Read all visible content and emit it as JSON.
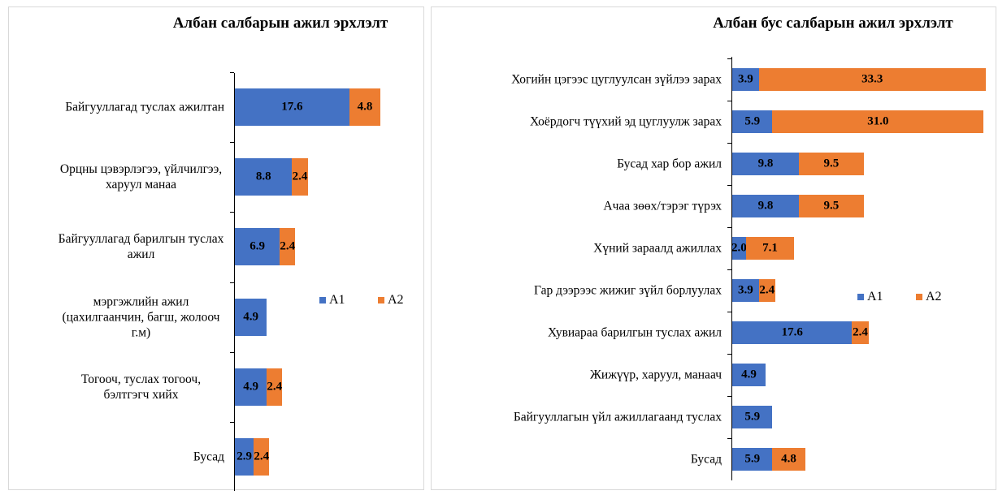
{
  "chart_data": [
    {
      "type": "stacked-bar-horizontal",
      "title": "Албан салбарын ажил эрхлэлт",
      "categories": [
        "Байгууллагад туслах ажилтан",
        "Орцны цэвэрлэгээ, үйлчилгээ, харуул манаа",
        "Байгууллагад барилгын туслах ажил",
        "мэргэжлийн ажил (цахилгаанчин, багш, жолооч г.м)",
        "Тогооч, туслах тогооч, бэлтгэгч хийх",
        "Бусад"
      ],
      "series": [
        {
          "name": "A1",
          "color": "#4472c4",
          "values": [
            17.6,
            8.8,
            6.9,
            4.9,
            4.9,
            2.9
          ]
        },
        {
          "name": "A2",
          "color": "#ed7d31",
          "values": [
            4.8,
            2.4,
            2.4,
            null,
            2.4,
            2.4
          ]
        }
      ]
    },
    {
      "type": "stacked-bar-horizontal",
      "title": "Албан бус салбарын ажил эрхлэлт",
      "categories": [
        "Хогийн цэгээс цуглуулсан зүйлээ зарах",
        "Хоёрдогч түүхий эд цуглуулж зарах",
        "Бусад хар бор ажил",
        "Ачаа зөөх/тэрэг түрэх",
        "Хүний зараалд ажиллах",
        "Гар дээрээс жижиг зүйл борлуулах",
        "Хувиараа барилгын туслах ажил",
        "Жижүүр, харуул, манаач",
        "Байгууллагын үйл ажиллагаанд туслах",
        "Бусад"
      ],
      "series": [
        {
          "name": "A1",
          "color": "#4472c4",
          "values": [
            3.9,
            5.9,
            9.8,
            9.8,
            2.0,
            3.9,
            17.6,
            4.9,
            5.9,
            5.9
          ],
          "value_labels": [
            "3.9",
            "5.9",
            "9.8",
            "9.8",
            "2.0",
            "3.9",
            "17.6",
            "4.9",
            "5.9",
            "5.9"
          ]
        },
        {
          "name": "A2",
          "color": "#ed7d31",
          "values": [
            33.3,
            31.0,
            9.5,
            9.5,
            7.1,
            2.4,
            2.4,
            null,
            null,
            4.8
          ],
          "value_labels": [
            "33.3",
            "31.0",
            "9.5",
            "9.5",
            "7.1",
            "2.4",
            "2.4",
            null,
            null,
            "4.8"
          ]
        }
      ]
    }
  ]
}
